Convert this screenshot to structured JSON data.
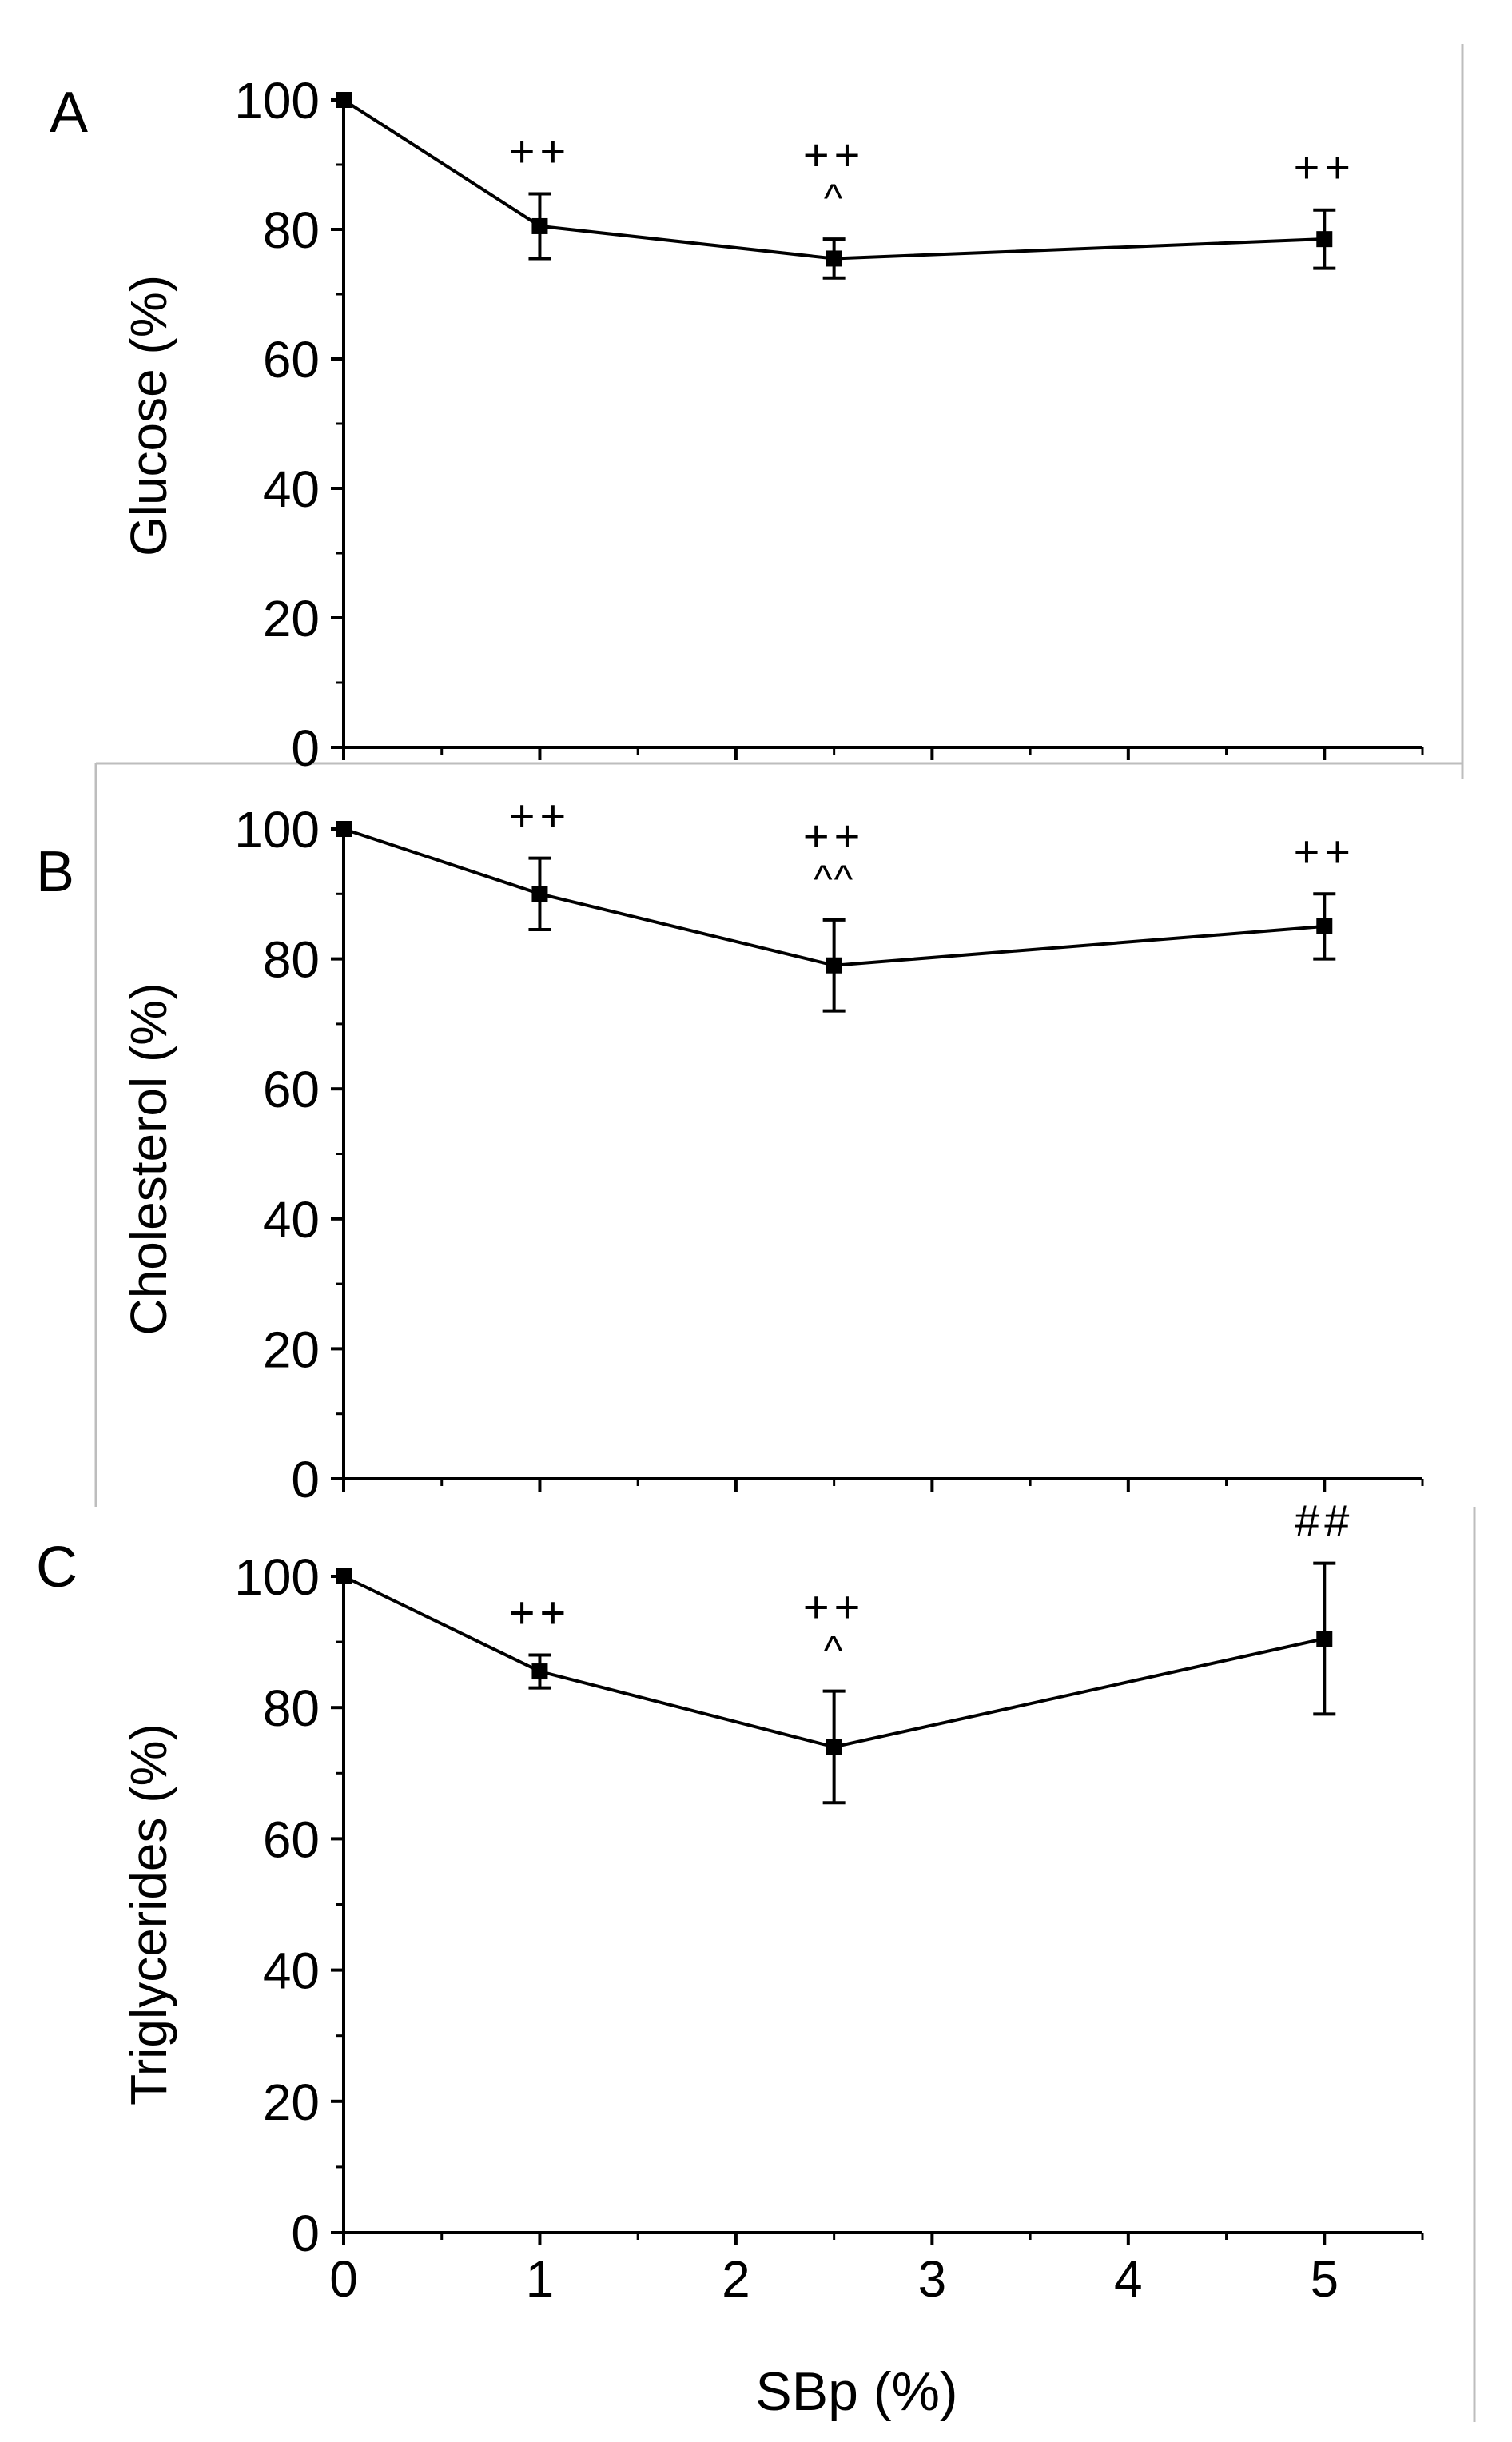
{
  "figure": {
    "xlabel": "SBp (%)",
    "colors": {
      "line": "#000000",
      "frame": "#bdbdbd",
      "background": "#ffffff"
    }
  },
  "chart_data": [
    {
      "panel": "A",
      "type": "line",
      "title": "",
      "ylabel": "Glucose (%)",
      "xlabel": "",
      "x": [
        0,
        1,
        2.5,
        5
      ],
      "values": [
        100,
        80.5,
        75.5,
        78.5
      ],
      "error": [
        0,
        5,
        3,
        4.5
      ],
      "annotations": [
        {
          "x": 1,
          "labels": [
            "++"
          ]
        },
        {
          "x": 2.5,
          "labels": [
            "++",
            "^"
          ]
        },
        {
          "x": 5,
          "labels": [
            "++"
          ]
        }
      ],
      "ylim": [
        0,
        100
      ],
      "yticks": [
        0,
        20,
        40,
        60,
        80,
        100
      ],
      "xlim": [
        0,
        5.5
      ],
      "xticks": [
        0,
        1,
        2,
        3,
        4,
        5
      ],
      "show_xtick_labels": false
    },
    {
      "panel": "B",
      "type": "line",
      "title": "",
      "ylabel": "Cholesterol (%)",
      "xlabel": "",
      "x": [
        0,
        1,
        2.5,
        5
      ],
      "values": [
        100,
        90,
        79,
        85
      ],
      "error": [
        0,
        5.5,
        7,
        5
      ],
      "annotations": [
        {
          "x": 1,
          "labels": [
            "++"
          ]
        },
        {
          "x": 2.5,
          "labels": [
            "++",
            "^^"
          ]
        },
        {
          "x": 5,
          "labels": [
            "++"
          ]
        }
      ],
      "ylim": [
        0,
        100
      ],
      "yticks": [
        0,
        20,
        40,
        60,
        80,
        100
      ],
      "xlim": [
        0,
        5.5
      ],
      "xticks": [
        0,
        1,
        2,
        3,
        4,
        5
      ],
      "show_xtick_labels": false
    },
    {
      "panel": "C",
      "type": "line",
      "title": "",
      "ylabel": "Triglycerides (%)",
      "xlabel": "SBp (%)",
      "x": [
        0,
        1,
        2.5,
        5
      ],
      "values": [
        100,
        85.5,
        74,
        90.5
      ],
      "error": [
        0,
        2.5,
        8.5,
        11.5
      ],
      "annotations": [
        {
          "x": 1,
          "labels": [
            "++"
          ]
        },
        {
          "x": 2.5,
          "labels": [
            "++",
            "^"
          ]
        },
        {
          "x": 5,
          "labels": [
            "##"
          ]
        }
      ],
      "ylim": [
        0,
        100
      ],
      "yticks": [
        0,
        20,
        40,
        60,
        80,
        100
      ],
      "xlim": [
        0,
        5.5
      ],
      "xticks": [
        0,
        1,
        2,
        3,
        4,
        5
      ],
      "show_xtick_labels": true
    }
  ]
}
